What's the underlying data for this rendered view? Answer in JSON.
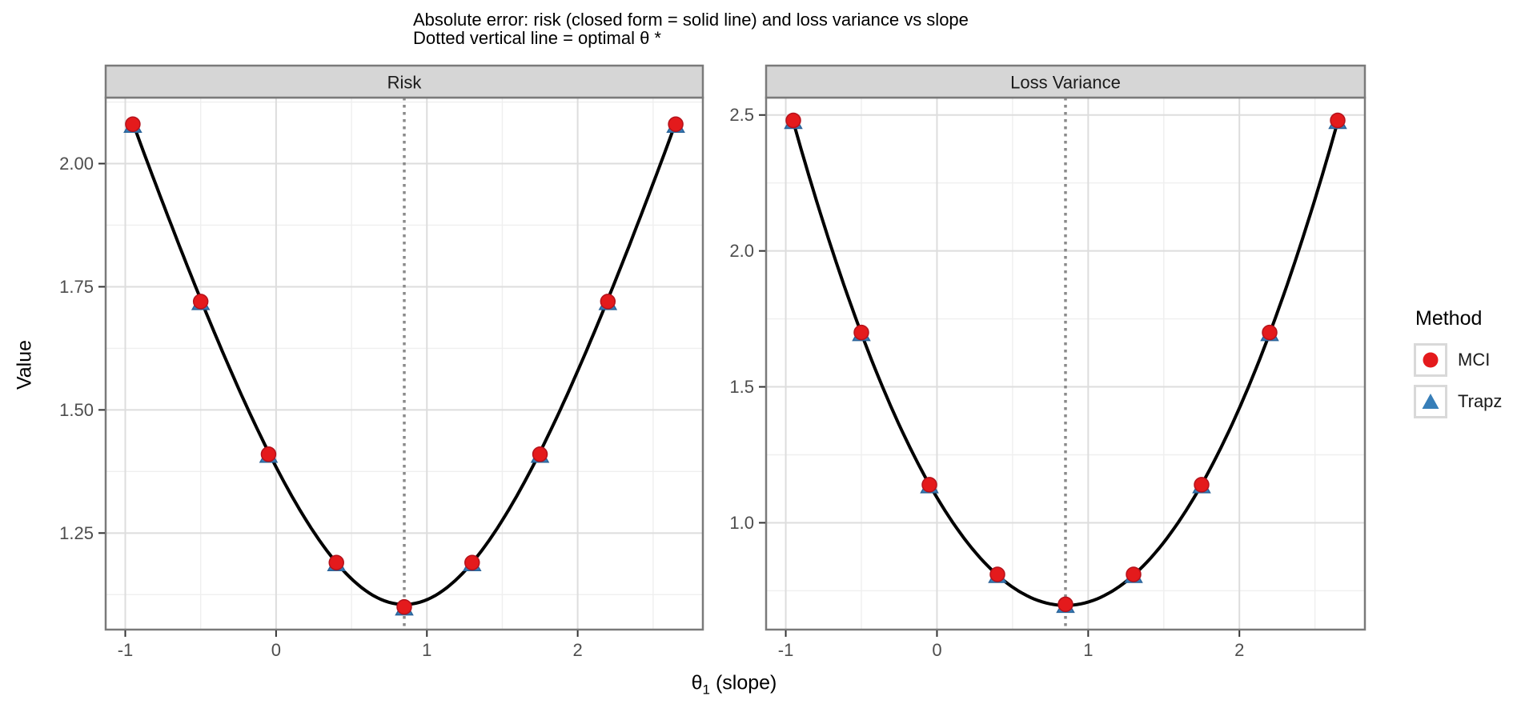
{
  "title": {
    "line1": "Absolute error: risk (closed form = solid line) and loss variance vs slope",
    "line2": "Dotted vertical line = optimal θ *"
  },
  "axes": {
    "y_label": "Value",
    "x_label_symbol": "θ",
    "x_label_subscript": "1",
    "x_label_suffix": " (slope)"
  },
  "legend": {
    "title": "Method",
    "items": [
      {
        "label": "MCI",
        "marker": "circle-icon",
        "color": "#e41a1c"
      },
      {
        "label": "Trapz",
        "marker": "triangle-icon",
        "color": "#377eb8"
      }
    ]
  },
  "colors": {
    "curve": "#000000",
    "mci_fill": "#e41a1c",
    "mci_stroke": "#b5121b",
    "trapz_fill": "#377eb8",
    "trapz_stroke": "#2a6399",
    "grid_major": "#dddddd",
    "grid_minor": "#efefef",
    "panel_border": "#7a7a7a",
    "strip_fill": "#d6d6d6",
    "tick_mark": "#333333",
    "dotted_line": "#8a8a8a",
    "panel_background": "#ffffff"
  },
  "chart_data": [
    {
      "type": "line",
      "facet": "Risk",
      "x": [
        -0.95,
        -0.5,
        -0.05,
        0.4,
        0.85,
        1.3,
        1.75,
        2.2,
        2.65
      ],
      "series": [
        {
          "name": "MCI",
          "values": [
            2.08,
            1.72,
            1.41,
            1.19,
            1.1,
            1.19,
            1.41,
            1.72,
            2.08
          ]
        },
        {
          "name": "Trapz",
          "values": [
            2.08,
            1.72,
            1.41,
            1.19,
            1.1,
            1.19,
            1.41,
            1.72,
            2.08
          ]
        }
      ],
      "curve": {
        "shape": "sqrt_quadratic",
        "c2": 1.221,
        "k2": 0.962,
        "x0": 0.85
      },
      "optimal_theta": 0.85,
      "xlabel": "θ1 (slope)",
      "ylabel": "Value",
      "xlim": [
        -1.13,
        2.83
      ],
      "ylim": [
        1.054,
        2.134
      ],
      "x_ticks": [
        -1,
        0,
        1,
        2
      ],
      "x_tick_labels": [
        "-1",
        "0",
        "1",
        "2"
      ],
      "x_minor": [
        -0.5,
        0.5,
        1.5,
        2.5
      ],
      "y_ticks": [
        1.25,
        1.5,
        1.75,
        2.0
      ],
      "y_tick_labels": [
        "1.25",
        "1.50",
        "1.75",
        "2.00"
      ],
      "y_minor": [
        1.125,
        1.375,
        1.625,
        1.875,
        2.125
      ],
      "grid": true,
      "legend_position": "right"
    },
    {
      "type": "line",
      "facet": "Loss Variance",
      "x": [
        -0.95,
        -0.5,
        -0.05,
        0.4,
        0.85,
        1.3,
        1.75,
        2.2,
        2.65
      ],
      "series": [
        {
          "name": "MCI",
          "values": [
            2.48,
            1.7,
            1.14,
            0.81,
            0.7,
            0.81,
            1.14,
            1.7,
            2.48
          ]
        },
        {
          "name": "Trapz",
          "values": [
            2.48,
            1.7,
            1.14,
            0.81,
            0.7,
            0.81,
            1.14,
            1.7,
            2.48
          ]
        }
      ],
      "curve": {
        "shape": "quadratic",
        "a": 0.549,
        "min": 0.696,
        "x0": 0.85
      },
      "optimal_theta": 0.85,
      "xlabel": "θ1 (slope)",
      "ylabel": "Value",
      "xlim": [
        -1.13,
        2.83
      ],
      "ylim": [
        0.607,
        2.564
      ],
      "x_ticks": [
        -1,
        0,
        1,
        2
      ],
      "x_tick_labels": [
        "-1",
        "0",
        "1",
        "2"
      ],
      "x_minor": [
        -0.5,
        0.5,
        1.5,
        2.5
      ],
      "y_ticks": [
        1.0,
        1.5,
        2.0,
        2.5
      ],
      "y_tick_labels": [
        "1.0",
        "1.5",
        "2.0",
        "2.5"
      ],
      "y_minor": [
        0.75,
        1.25,
        1.75,
        2.25
      ],
      "grid": true,
      "legend_position": "right"
    }
  ]
}
